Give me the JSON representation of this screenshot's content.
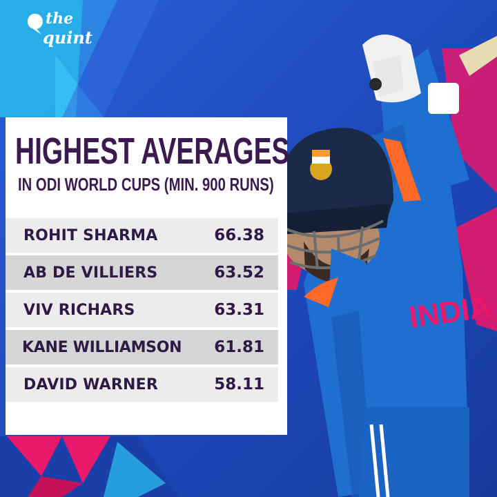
{
  "brand": {
    "line1": "the",
    "line2": "quint"
  },
  "title": "HIGHEST AVERAGES",
  "subtitle": "IN ODI WORLD CUPS (MIN. 900 RUNS)",
  "rows": [
    {
      "name": "ROHIT SHARMA",
      "average": "66.38"
    },
    {
      "name": "AB DE VILLIERS",
      "average": "63.52"
    },
    {
      "name": "VIV RICHARS",
      "average": "63.31"
    },
    {
      "name": "KANE WILLIAMSON",
      "average": "61.81"
    },
    {
      "name": "DAVID WARNER",
      "average": "58.11"
    }
  ],
  "jersey_text": "INDIA",
  "colors": {
    "background": "#1f4fc4",
    "accent_pink": "#e8186a",
    "accent_cyan": "#29b6ea",
    "title": "#3b1a4f",
    "row_light": "#ececec",
    "row_dark": "#d6d6d6",
    "jersey": "#1e6fd0"
  }
}
